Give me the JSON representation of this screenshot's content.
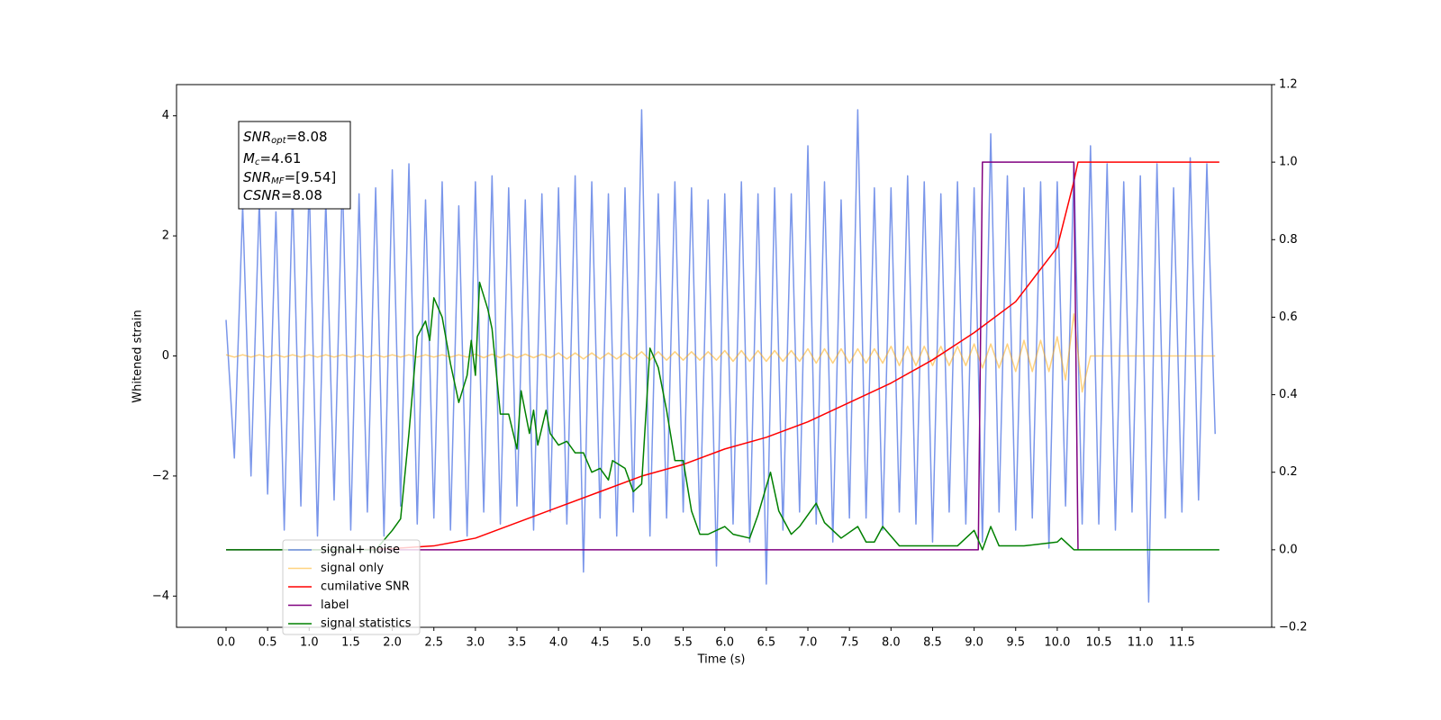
{
  "chart_data": {
    "type": "line",
    "ylabel": "Whitened strain",
    "xlabel": "Time (s)",
    "xlim": [
      -0.596,
      12.58
    ],
    "ylim": [
      -4.52,
      4.52
    ],
    "y2lim": [
      -0.2,
      1.2
    ],
    "xticks": [
      {
        "value": 0,
        "label": "0.0"
      },
      0.5,
      {
        "value": 1,
        "label": "1.0"
      },
      1.5,
      {
        "value": 2,
        "label": "2.0"
      },
      2.5,
      {
        "value": 3,
        "label": "3.0"
      },
      3.5,
      {
        "value": 4,
        "label": "4.0"
      },
      4.5,
      {
        "value": 5,
        "label": "5.0"
      },
      5.5,
      {
        "value": 6,
        "label": "6.0"
      },
      6.5,
      {
        "value": 7,
        "label": "7.0"
      },
      7.5,
      {
        "value": 8,
        "label": "8.0"
      },
      8.5,
      {
        "value": 9,
        "label": "9.0"
      },
      9.5,
      {
        "value": 10,
        "label": "10.0"
      },
      10.5,
      {
        "value": 11,
        "label": "11.0"
      },
      11.5
    ],
    "yticks": [
      {
        "value": -4,
        "label": "−4"
      },
      {
        "value": -2,
        "label": "−2"
      },
      0,
      2,
      4
    ],
    "y2ticks": [
      {
        "value": -0.2,
        "label": "−0.2"
      },
      {
        "value": 0,
        "label": "0.0"
      },
      0.2,
      0.4,
      0.6,
      0.8,
      {
        "value": 1,
        "label": "1.0"
      },
      1.2
    ],
    "legend": "lower left",
    "annotation": [
      [
        "SNR",
        "opt",
        "=8.08"
      ],
      [
        "M",
        "c",
        "=4.61"
      ],
      [
        "SNR",
        "MF",
        "=[9.54]"
      ],
      [
        "CSNR",
        "",
        "=8.08"
      ]
    ],
    "x": [
      0.0,
      0.1,
      0.2,
      0.3,
      0.4,
      0.5,
      0.6,
      0.7,
      0.8,
      0.9,
      1.0,
      1.1,
      1.2,
      1.3,
      1.4,
      1.5,
      1.6,
      1.7,
      1.8,
      1.9,
      2.0,
      2.1,
      2.2,
      2.3,
      2.4,
      2.5,
      2.6,
      2.7,
      2.8,
      2.9,
      3.0,
      3.1,
      3.2,
      3.3,
      3.4,
      3.5,
      3.6,
      3.7,
      3.8,
      3.9,
      4.0,
      4.1,
      4.2,
      4.3,
      4.4,
      4.5,
      4.6,
      4.7,
      4.8,
      4.9,
      5.0,
      5.1,
      5.2,
      5.3,
      5.4,
      5.5,
      5.6,
      5.7,
      5.8,
      5.9,
      6.0,
      6.1,
      6.2,
      6.3,
      6.4,
      6.5,
      6.6,
      6.7,
      6.8,
      6.9,
      7.0,
      7.1,
      7.2,
      7.3,
      7.4,
      7.5,
      7.6,
      7.7,
      7.8,
      7.9,
      8.0,
      8.1,
      8.2,
      8.3,
      8.4,
      8.5,
      8.6,
      8.7,
      8.8,
      8.9,
      9.0,
      9.1,
      9.2,
      9.3,
      9.4,
      9.5,
      9.6,
      9.7,
      9.8,
      9.9,
      10.0,
      10.1,
      10.2,
      10.3,
      10.4,
      10.5,
      10.6,
      10.7,
      10.8,
      10.9,
      11.0,
      11.1,
      11.2,
      11.3,
      11.4,
      11.5,
      11.6,
      11.7,
      11.8,
      11.9
    ],
    "series": [
      {
        "name": "signal+ noise",
        "color": "#4169e1",
        "opacity": 0.7,
        "values": [
          0.6,
          -1.7,
          2.5,
          -2.0,
          2.6,
          -2.3,
          2.4,
          -2.9,
          2.8,
          -2.5,
          2.9,
          -3.0,
          2.6,
          -2.4,
          3.0,
          -2.9,
          2.7,
          -2.6,
          2.8,
          -3.0,
          3.1,
          -2.5,
          3.2,
          -2.8,
          2.6,
          -2.7,
          2.9,
          -2.9,
          2.5,
          -3.0,
          2.9,
          -2.6,
          3.0,
          -2.8,
          2.8,
          -2.5,
          2.6,
          -2.9,
          2.7,
          -2.6,
          2.8,
          -2.8,
          3.0,
          -3.6,
          2.9,
          -2.7,
          2.7,
          -3.0,
          2.8,
          -2.6,
          4.1,
          -3.0,
          2.7,
          -2.7,
          2.9,
          -2.6,
          2.8,
          -2.9,
          2.6,
          -3.5,
          2.7,
          -2.8,
          2.9,
          -3.1,
          2.7,
          -3.8,
          2.8,
          -2.9,
          2.7,
          -2.6,
          3.5,
          -2.8,
          2.9,
          -3.1,
          2.6,
          -2.7,
          4.1,
          -2.7,
          2.8,
          -2.9,
          2.8,
          -2.6,
          3.0,
          -2.8,
          2.9,
          -3.1,
          2.7,
          -2.6,
          2.9,
          -2.8,
          2.8,
          -3.1,
          3.7,
          -2.6,
          3.0,
          -2.9,
          2.8,
          -2.7,
          2.9,
          -3.2,
          2.9,
          -2.5,
          3.2,
          -2.8,
          3.5,
          -2.8,
          3.2,
          -2.9,
          2.9,
          -2.6,
          3.0,
          -4.1,
          3.2,
          -2.7,
          2.8,
          -2.6,
          3.3,
          -2.4,
          3.2,
          -1.3
        ]
      },
      {
        "name": "signal only",
        "color": "#ffa500",
        "opacity": 0.5,
        "values": [
          0.02,
          -0.02,
          0.02,
          -0.02,
          0.02,
          -0.02,
          0.02,
          -0.02,
          0.02,
          -0.02,
          0.02,
          -0.02,
          0.02,
          -0.02,
          0.02,
          -0.02,
          0.02,
          -0.02,
          0.02,
          -0.02,
          0.02,
          -0.02,
          0.02,
          -0.02,
          0.02,
          -0.02,
          0.02,
          -0.02,
          0.02,
          -0.02,
          0.03,
          -0.03,
          0.03,
          -0.03,
          0.03,
          -0.03,
          0.03,
          -0.03,
          0.03,
          -0.03,
          0.05,
          -0.05,
          0.05,
          -0.05,
          0.05,
          -0.05,
          0.05,
          -0.05,
          0.05,
          -0.05,
          0.07,
          -0.07,
          0.07,
          -0.07,
          0.07,
          -0.07,
          0.07,
          -0.07,
          0.07,
          -0.07,
          0.09,
          -0.09,
          0.09,
          -0.09,
          0.09,
          -0.09,
          0.09,
          -0.09,
          0.09,
          -0.09,
          0.12,
          -0.12,
          0.12,
          -0.12,
          0.12,
          -0.12,
          0.12,
          -0.12,
          0.12,
          -0.12,
          0.16,
          -0.16,
          0.16,
          -0.16,
          0.16,
          -0.16,
          0.16,
          -0.16,
          0.16,
          -0.16,
          0.2,
          -0.2,
          0.2,
          -0.2,
          0.2,
          -0.26,
          0.26,
          -0.26,
          0.26,
          -0.26,
          0.32,
          -0.4,
          0.7,
          -0.6,
          0,
          0,
          0,
          0,
          0,
          0,
          0,
          0,
          0,
          0,
          0,
          0,
          0,
          0,
          0,
          0
        ]
      },
      {
        "name": "cumilative SNR",
        "color": "#ff0000",
        "axis": "y2",
        "x": [
          1.6,
          2.0,
          2.5,
          3.0,
          3.5,
          4.0,
          4.5,
          5.0,
          5.5,
          6.0,
          6.5,
          7.0,
          7.5,
          8.0,
          8.5,
          9.0,
          9.5,
          10.0,
          10.2,
          10.25,
          11.95
        ],
        "values": [
          0,
          0.003,
          0.01,
          0.03,
          0.07,
          0.11,
          0.15,
          0.19,
          0.22,
          0.26,
          0.29,
          0.33,
          0.38,
          0.43,
          0.49,
          0.56,
          0.64,
          0.78,
          0.95,
          1.0,
          1.0
        ]
      },
      {
        "name": "label",
        "color": "#800080",
        "axis": "y2",
        "x": [
          0,
          9.05,
          9.1,
          10.2,
          10.25
        ],
        "values": [
          0,
          0,
          1,
          1,
          0
        ]
      },
      {
        "name": "signal statistics",
        "color": "#008000",
        "axis": "y2",
        "x": [
          0,
          1.8,
          2.0,
          2.1,
          2.2,
          2.3,
          2.4,
          2.45,
          2.5,
          2.6,
          2.7,
          2.8,
          2.9,
          2.95,
          3.0,
          3.05,
          3.15,
          3.2,
          3.3,
          3.4,
          3.5,
          3.55,
          3.65,
          3.7,
          3.75,
          3.85,
          3.9,
          4.0,
          4.1,
          4.2,
          4.3,
          4.4,
          4.5,
          4.6,
          4.65,
          4.8,
          4.9,
          5.0,
          5.1,
          5.2,
          5.3,
          5.4,
          5.5,
          5.6,
          5.7,
          5.8,
          5.9,
          6.0,
          6.1,
          6.3,
          6.4,
          6.55,
          6.65,
          6.8,
          6.9,
          7.1,
          7.2,
          7.3,
          7.4,
          7.6,
          7.7,
          7.8,
          7.9,
          8.1,
          8.3,
          8.5,
          8.8,
          9.0,
          9.1,
          9.2,
          9.3,
          9.6,
          10.0,
          10.05,
          10.2,
          11.95
        ],
        "values": [
          0,
          0,
          0.05,
          0.08,
          0.3,
          0.55,
          0.59,
          0.54,
          0.65,
          0.6,
          0.48,
          0.38,
          0.45,
          0.54,
          0.45,
          0.69,
          0.62,
          0.57,
          0.35,
          0.35,
          0.26,
          0.41,
          0.3,
          0.36,
          0.27,
          0.36,
          0.3,
          0.27,
          0.28,
          0.25,
          0.25,
          0.2,
          0.21,
          0.18,
          0.23,
          0.21,
          0.15,
          0.17,
          0.52,
          0.47,
          0.36,
          0.23,
          0.23,
          0.1,
          0.04,
          0.04,
          0.05,
          0.06,
          0.04,
          0.03,
          0.09,
          0.2,
          0.1,
          0.04,
          0.06,
          0.12,
          0.07,
          0.05,
          0.03,
          0.06,
          0.02,
          0.02,
          0.06,
          0.01,
          0.01,
          0.01,
          0.01,
          0.05,
          0,
          0.06,
          0.01,
          0.01,
          0.02,
          0.03,
          0,
          0
        ]
      }
    ]
  }
}
